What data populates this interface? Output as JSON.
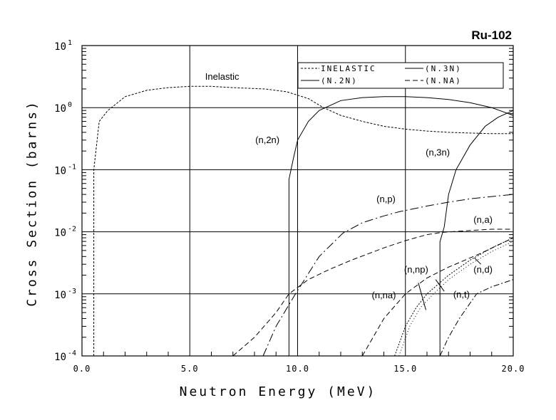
{
  "chart_data": {
    "type": "line",
    "title": "Ru-102",
    "xlabel": "Neutron Energy (MeV)",
    "ylabel": "Cross Section (barns)",
    "xlim": [
      0,
      20
    ],
    "ylim": [
      0.0001,
      10
    ],
    "yscale": "log",
    "grid": true,
    "xticks": [
      "0.0",
      "5.0",
      "10.0",
      "15.0",
      "20.0"
    ],
    "yticks": [
      {
        "base": "10",
        "exp": "1"
      },
      {
        "base": "10",
        "exp": "0"
      },
      {
        "base": "10",
        "exp": "-1"
      },
      {
        "base": "10",
        "exp": "-2"
      },
      {
        "base": "10",
        "exp": "-3"
      },
      {
        "base": "10",
        "exp": "-4"
      }
    ],
    "legend_position": "top-right",
    "legend": [
      {
        "label": "INELASTIC",
        "dash": "3,2"
      },
      {
        "label": "(N.3N)",
        "dash": ""
      },
      {
        "label": "(N.2N)",
        "dash": ""
      },
      {
        "label": "(N.NA)",
        "dash": "7,4"
      }
    ],
    "series": [
      {
        "name": "Inelastic",
        "label": "Inelastic",
        "dash": "3,2",
        "x": [
          0.55,
          0.55,
          0.8,
          1.2,
          2,
          3,
          4,
          5,
          6,
          7,
          8.5,
          9.5,
          10.5,
          11.2,
          12,
          13,
          14,
          15,
          16,
          17,
          18,
          19,
          20
        ],
        "y": [
          0.0001,
          0.1,
          0.6,
          0.9,
          1.5,
          1.9,
          2.1,
          2.2,
          2.2,
          2.1,
          2.0,
          1.8,
          1.4,
          1.0,
          0.75,
          0.6,
          0.5,
          0.45,
          0.42,
          0.4,
          0.39,
          0.38,
          0.38
        ]
      },
      {
        "name": "(n,2n)",
        "label": "(n,2n)",
        "dash": "",
        "x": [
          9.6,
          9.6,
          9.8,
          10,
          10.5,
          11,
          12,
          13,
          14,
          15,
          16,
          17,
          18,
          19,
          20
        ],
        "y": [
          0.0001,
          0.07,
          0.15,
          0.3,
          0.6,
          0.9,
          1.3,
          1.45,
          1.5,
          1.5,
          1.45,
          1.35,
          1.2,
          1.0,
          0.75
        ]
      },
      {
        "name": "(n,3n)",
        "label": "(n,3n)",
        "dash": "",
        "x": [
          16.6,
          16.6,
          16.8,
          17.0,
          17.35,
          18,
          18.7,
          19.3,
          20
        ],
        "y": [
          0.0001,
          0.0069,
          0.012,
          0.04,
          0.1,
          0.25,
          0.5,
          0.7,
          0.9
        ]
      },
      {
        "name": "(n,p)",
        "label": "(n,p)",
        "dash": "12,4,2,4",
        "x": [
          8.4,
          9,
          9.9,
          11,
          12.1,
          13,
          14,
          14.7,
          16,
          17,
          18,
          19,
          20
        ],
        "y": [
          0.0001,
          0.0003,
          0.001,
          0.004,
          0.0095,
          0.014,
          0.018,
          0.021,
          0.026,
          0.03,
          0.034,
          0.037,
          0.04
        ]
      },
      {
        "name": "(n,a)",
        "label": "(n,a)",
        "dash": "7,4",
        "x": [
          7.0,
          8,
          9,
          9.6,
          10.5,
          11.5,
          12.5,
          14,
          15,
          16,
          16.7,
          18,
          19,
          20
        ],
        "y": [
          0.0001,
          0.0002,
          0.0005,
          0.001,
          0.0017,
          0.0025,
          0.0035,
          0.0055,
          0.0072,
          0.009,
          0.0098,
          0.0105,
          0.011,
          0.011
        ]
      },
      {
        "name": "(n,na)",
        "label": "(n,na)",
        "dash": "7,4",
        "x": [
          13,
          13.5,
          14,
          15,
          16,
          17,
          17.5,
          18.5,
          20
        ],
        "y": [
          0.0001,
          0.0002,
          0.0004,
          0.001,
          0.0018,
          0.0027,
          0.0032,
          0.0045,
          0.008
        ]
      },
      {
        "name": "(n,np)",
        "label": "(n,np)",
        "dash": "2,2",
        "x": [
          14.5,
          15,
          15.5,
          16,
          17,
          18,
          19,
          20
        ],
        "y": [
          0.0001,
          0.0003,
          0.0006,
          0.001,
          0.002,
          0.0035,
          0.0055,
          0.008
        ]
      },
      {
        "name": "(n,d)",
        "label": "(n,d)",
        "dash": "1,3",
        "x": [
          14.7,
          15.2,
          15.7,
          16.3,
          17,
          18,
          19,
          20
        ],
        "y": [
          0.0001,
          0.0003,
          0.0006,
          0.001,
          0.0017,
          0.003,
          0.0048,
          0.007
        ]
      },
      {
        "name": "(n,t)",
        "label": "(n,t)",
        "dash": "8,3,2,3",
        "x": [
          16.6,
          17,
          17.5,
          18.3,
          19,
          20
        ],
        "y": [
          0.0001,
          0.0002,
          0.0004,
          0.001,
          0.0013,
          0.0017
        ]
      }
    ],
    "annotations": [
      {
        "text": "Inelastic",
        "x": 6.5,
        "y": 2.8
      },
      {
        "text": "(n,2n)",
        "x": 8.6,
        "y": 0.27
      },
      {
        "text": "(n,3n)",
        "x": 16.5,
        "y": 0.17
      },
      {
        "text": "(n,p)",
        "x": 14.1,
        "y": 0.03
      },
      {
        "text": "(n,a)",
        "x": 18.6,
        "y": 0.014
      },
      {
        "text": "(n,np)",
        "x": 15.5,
        "y": 0.0022
      },
      {
        "text": "(n,d)",
        "x": 18.6,
        "y": 0.0022
      },
      {
        "text": "(n,na)",
        "x": 14.0,
        "y": 0.00085
      },
      {
        "text": "(n,t)",
        "x": 17.6,
        "y": 0.00087
      }
    ]
  }
}
